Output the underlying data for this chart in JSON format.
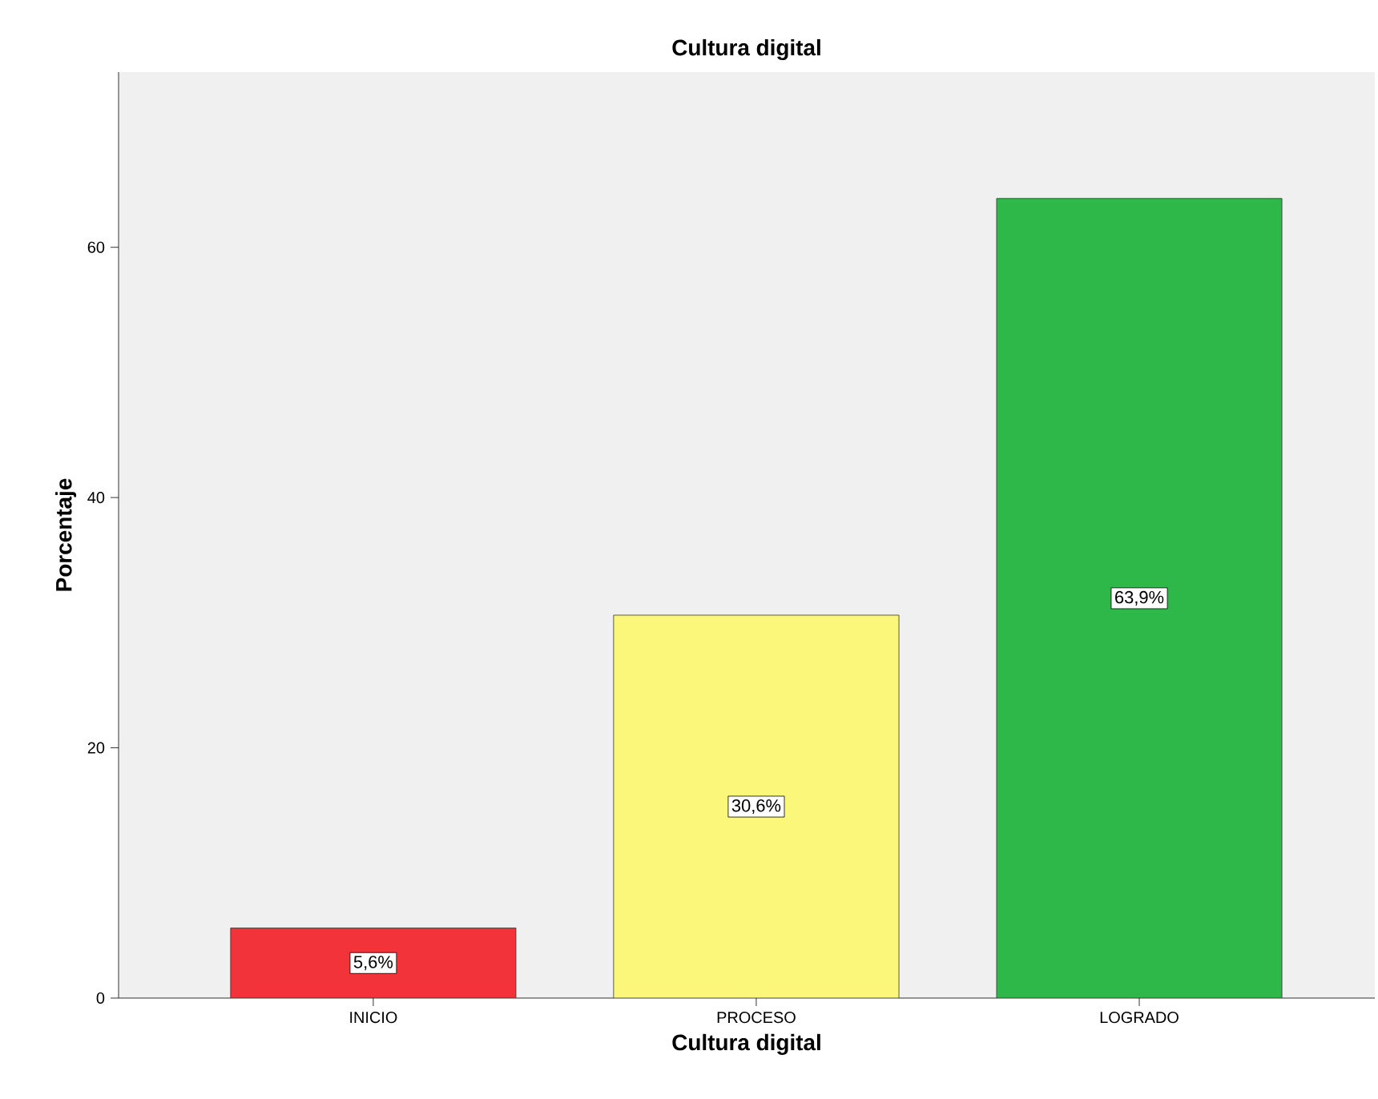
{
  "chart_data": {
    "type": "bar",
    "title": "Cultura digital",
    "xlabel": "Cultura digital",
    "ylabel": "Porcentaje",
    "categories": [
      "INICIO",
      "PROCESO",
      "LOGRADO"
    ],
    "values": [
      5.6,
      30.6,
      63.9
    ],
    "value_labels": [
      "5,6%",
      "30,6%",
      "63,9%"
    ],
    "colors": [
      "#f2333a",
      "#fbf77a",
      "#2eb84a"
    ],
    "ylim": [
      0,
      74
    ],
    "yticks": [
      0,
      20,
      40,
      60
    ]
  }
}
